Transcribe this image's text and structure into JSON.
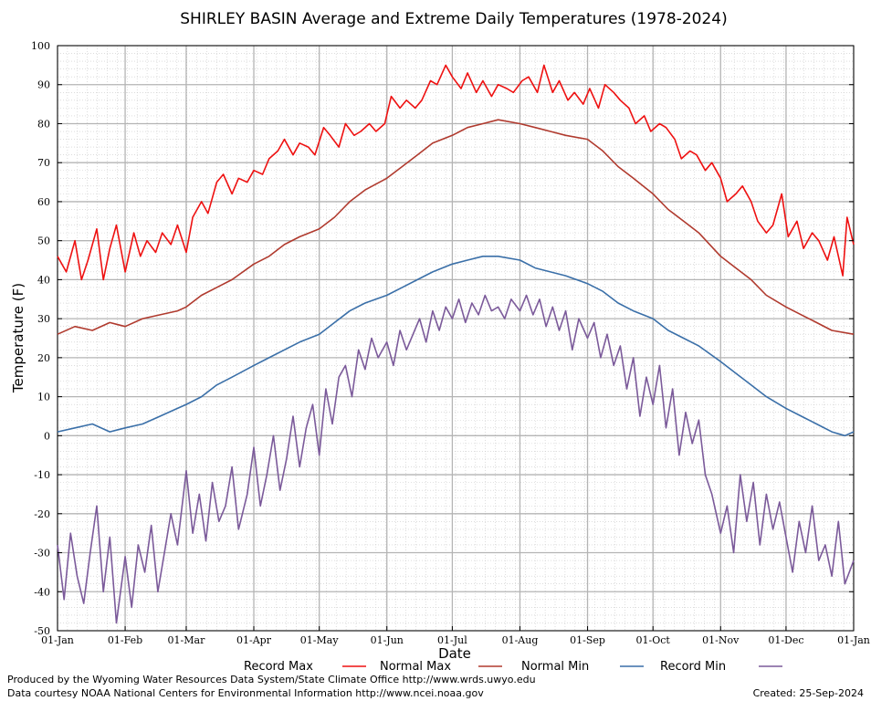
{
  "chart_data": {
    "type": "line",
    "title": "SHIRLEY BASIN Average and Extreme Daily Temperatures (1978-2024)",
    "xlabel": "Date",
    "ylabel": "Temperature (F)",
    "ylim": [
      -50,
      100
    ],
    "yticks": [
      -50,
      -40,
      -30,
      -20,
      -10,
      0,
      10,
      20,
      30,
      40,
      50,
      60,
      70,
      80,
      90,
      100
    ],
    "xlim": [
      0,
      365
    ],
    "xticks": [
      {
        "day": 0,
        "label": "01-Jan"
      },
      {
        "day": 31,
        "label": "01-Feb"
      },
      {
        "day": 59,
        "label": "01-Mar"
      },
      {
        "day": 90,
        "label": "01-Apr"
      },
      {
        "day": 120,
        "label": "01-May"
      },
      {
        "day": 151,
        "label": "01-Jun"
      },
      {
        "day": 181,
        "label": "01-Jul"
      },
      {
        "day": 212,
        "label": "01-Aug"
      },
      {
        "day": 243,
        "label": "01-Sep"
      },
      {
        "day": 273,
        "label": "01-Oct"
      },
      {
        "day": 304,
        "label": "01-Nov"
      },
      {
        "day": 334,
        "label": "01-Dec"
      },
      {
        "day": 365,
        "label": "01-Jan"
      }
    ],
    "grid": true,
    "legend_position": "bottom",
    "series": [
      {
        "name": "Record Max",
        "color": "#ee1111",
        "x": [
          0,
          4,
          8,
          11,
          14,
          18,
          21,
          24,
          27,
          31,
          35,
          38,
          41,
          45,
          48,
          52,
          55,
          59,
          62,
          66,
          69,
          73,
          76,
          80,
          83,
          87,
          90,
          94,
          97,
          101,
          104,
          108,
          111,
          115,
          118,
          122,
          125,
          129,
          132,
          136,
          139,
          143,
          146,
          150,
          153,
          157,
          160,
          164,
          167,
          171,
          174,
          178,
          181,
          185,
          188,
          192,
          195,
          199,
          202,
          206,
          209,
          213,
          216,
          220,
          223,
          227,
          230,
          234,
          237,
          241,
          244,
          248,
          251,
          255,
          258,
          262,
          265,
          269,
          272,
          276,
          279,
          283,
          286,
          290,
          293,
          297,
          300,
          304,
          307,
          311,
          314,
          318,
          321,
          325,
          328,
          332,
          335,
          339,
          342,
          346,
          349,
          353,
          356,
          360,
          362,
          365
        ],
        "values": [
          46,
          42,
          50,
          40,
          45,
          53,
          40,
          48,
          54,
          42,
          52,
          46,
          50,
          47,
          52,
          49,
          54,
          47,
          56,
          60,
          57,
          65,
          67,
          62,
          66,
          65,
          68,
          67,
          71,
          73,
          76,
          72,
          75,
          74,
          72,
          79,
          77,
          74,
          80,
          77,
          78,
          80,
          78,
          80,
          87,
          84,
          86,
          84,
          86,
          91,
          90,
          95,
          92,
          89,
          93,
          88,
          91,
          87,
          90,
          89,
          88,
          91,
          92,
          88,
          95,
          88,
          91,
          86,
          88,
          85,
          89,
          84,
          90,
          88,
          86,
          84,
          80,
          82,
          78,
          80,
          79,
          76,
          71,
          73,
          72,
          68,
          70,
          66,
          60,
          62,
          64,
          60,
          55,
          52,
          54,
          62,
          51,
          55,
          48,
          52,
          50,
          45,
          51,
          41,
          56,
          49
        ]
      },
      {
        "name": "Normal Max",
        "color": "#b03a2e",
        "x": [
          0,
          8,
          16,
          24,
          31,
          39,
          47,
          55,
          59,
          66,
          73,
          80,
          90,
          97,
          104,
          111,
          120,
          127,
          134,
          141,
          151,
          158,
          165,
          172,
          181,
          188,
          195,
          202,
          212,
          219,
          226,
          233,
          243,
          250,
          257,
          264,
          273,
          280,
          287,
          294,
          304,
          311,
          318,
          325,
          334,
          341,
          348,
          355,
          365
        ],
        "values": [
          26,
          28,
          27,
          29,
          28,
          30,
          31,
          32,
          33,
          36,
          38,
          40,
          44,
          46,
          49,
          51,
          53,
          56,
          60,
          63,
          66,
          69,
          72,
          75,
          77,
          79,
          80,
          81,
          80,
          79,
          78,
          77,
          76,
          73,
          69,
          66,
          62,
          58,
          55,
          52,
          46,
          43,
          40,
          36,
          33,
          31,
          29,
          27,
          26
        ]
      },
      {
        "name": "Normal Min",
        "color": "#3a6fa8",
        "x": [
          0,
          8,
          16,
          24,
          31,
          39,
          47,
          55,
          59,
          66,
          73,
          80,
          90,
          97,
          104,
          111,
          120,
          127,
          134,
          141,
          151,
          158,
          165,
          172,
          181,
          188,
          195,
          202,
          212,
          219,
          226,
          233,
          243,
          250,
          257,
          264,
          273,
          280,
          287,
          294,
          304,
          311,
          318,
          325,
          334,
          341,
          348,
          355,
          361,
          365
        ],
        "values": [
          1,
          2,
          3,
          1,
          2,
          3,
          5,
          7,
          8,
          10,
          13,
          15,
          18,
          20,
          22,
          24,
          26,
          29,
          32,
          34,
          36,
          38,
          40,
          42,
          44,
          45,
          46,
          46,
          45,
          43,
          42,
          41,
          39,
          37,
          34,
          32,
          30,
          27,
          25,
          23,
          19,
          16,
          13,
          10,
          7,
          5,
          3,
          1,
          0,
          1
        ]
      },
      {
        "name": "Record Min",
        "color": "#7b5a9a",
        "x": [
          0,
          3,
          6,
          9,
          12,
          15,
          18,
          21,
          24,
          27,
          31,
          34,
          37,
          40,
          43,
          46,
          49,
          52,
          55,
          59,
          62,
          65,
          68,
          71,
          74,
          77,
          80,
          83,
          87,
          90,
          93,
          96,
          99,
          102,
          105,
          108,
          111,
          114,
          117,
          120,
          123,
          126,
          129,
          132,
          135,
          138,
          141,
          144,
          147,
          151,
          154,
          157,
          160,
          163,
          166,
          169,
          172,
          175,
          178,
          181,
          184,
          187,
          190,
          193,
          196,
          199,
          202,
          205,
          208,
          212,
          215,
          218,
          221,
          224,
          227,
          230,
          233,
          236,
          239,
          243,
          246,
          249,
          252,
          255,
          258,
          261,
          264,
          267,
          270,
          273,
          276,
          279,
          282,
          285,
          288,
          291,
          294,
          297,
          300,
          304,
          307,
          310,
          313,
          316,
          319,
          322,
          325,
          328,
          331,
          334,
          337,
          340,
          343,
          346,
          349,
          352,
          355,
          358,
          361,
          365
        ],
        "values": [
          -28,
          -42,
          -25,
          -36,
          -43,
          -30,
          -18,
          -40,
          -26,
          -48,
          -31,
          -44,
          -28,
          -35,
          -23,
          -40,
          -30,
          -20,
          -28,
          -9,
          -25,
          -15,
          -27,
          -12,
          -22,
          -18,
          -8,
          -24,
          -15,
          -3,
          -18,
          -10,
          0,
          -14,
          -6,
          5,
          -8,
          2,
          8,
          -5,
          12,
          3,
          15,
          18,
          10,
          22,
          17,
          25,
          20,
          24,
          18,
          27,
          22,
          26,
          30,
          24,
          32,
          27,
          33,
          30,
          35,
          29,
          34,
          31,
          36,
          32,
          33,
          30,
          35,
          32,
          36,
          31,
          35,
          28,
          33,
          27,
          32,
          22,
          30,
          25,
          29,
          20,
          26,
          18,
          23,
          12,
          20,
          5,
          15,
          8,
          18,
          2,
          12,
          -5,
          6,
          -2,
          4,
          -10,
          -15,
          -25,
          -18,
          -30,
          -10,
          -22,
          -12,
          -28,
          -15,
          -24,
          -17,
          -26,
          -35,
          -22,
          -30,
          -18,
          -32,
          -28,
          -36,
          -22,
          -38,
          -32
        ]
      }
    ],
    "footer": {
      "left_line1": "Produced by the Wyoming Water Resources Data System/State Climate Office http://www.wrds.uwyo.edu",
      "left_line2": "Data courtesy NOAA National Centers for Environmental Information http://www.ncei.noaa.gov",
      "created": "Created:  25-Sep-2024"
    }
  }
}
